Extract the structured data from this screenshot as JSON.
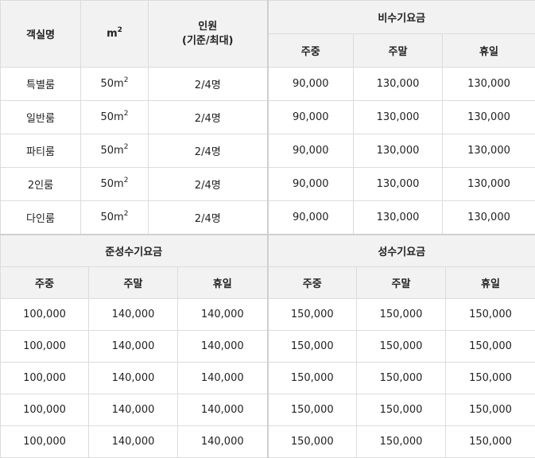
{
  "top_table": {
    "headers": {
      "room": "객실명",
      "area_base": "m",
      "area_sup": "2",
      "occupancy_line1": "인원",
      "occupancy_line2": "(기준/최대)",
      "season": "비수기요금",
      "sub": [
        "주중",
        "주말",
        "휴일"
      ]
    },
    "rows": [
      {
        "room": "특별룸",
        "area": "50m",
        "area_sup": "2",
        "occupancy": "2/4명",
        "weekday": "90,000",
        "weekend": "130,000",
        "holiday": "130,000"
      },
      {
        "room": "일반룸",
        "area": "50m",
        "area_sup": "2",
        "occupancy": "2/4명",
        "weekday": "90,000",
        "weekend": "130,000",
        "holiday": "130,000"
      },
      {
        "room": "파티룸",
        "area": "50m",
        "area_sup": "2",
        "occupancy": "2/4명",
        "weekday": "90,000",
        "weekend": "130,000",
        "holiday": "130,000"
      },
      {
        "room": "2인룸",
        "area": "50m",
        "area_sup": "2",
        "occupancy": "2/4명",
        "weekday": "90,000",
        "weekend": "130,000",
        "holiday": "130,000"
      },
      {
        "room": "다인룸",
        "area": "50m",
        "area_sup": "2",
        "occupancy": "2/4명",
        "weekday": "90,000",
        "weekend": "130,000",
        "holiday": "130,000"
      }
    ]
  },
  "bottom_table": {
    "left_season": "준성수기요금",
    "right_season": "성수기요금",
    "sub": [
      "주중",
      "주말",
      "휴일",
      "주중",
      "주말",
      "휴일"
    ],
    "rows": [
      [
        "100,000",
        "140,000",
        "140,000",
        "150,000",
        "150,000",
        "150,000"
      ],
      [
        "100,000",
        "140,000",
        "140,000",
        "150,000",
        "150,000",
        "150,000"
      ],
      [
        "100,000",
        "140,000",
        "140,000",
        "150,000",
        "150,000",
        "150,000"
      ],
      [
        "100,000",
        "140,000",
        "140,000",
        "150,000",
        "150,000",
        "150,000"
      ],
      [
        "100,000",
        "140,000",
        "140,000",
        "150,000",
        "150,000",
        "150,000"
      ]
    ]
  }
}
